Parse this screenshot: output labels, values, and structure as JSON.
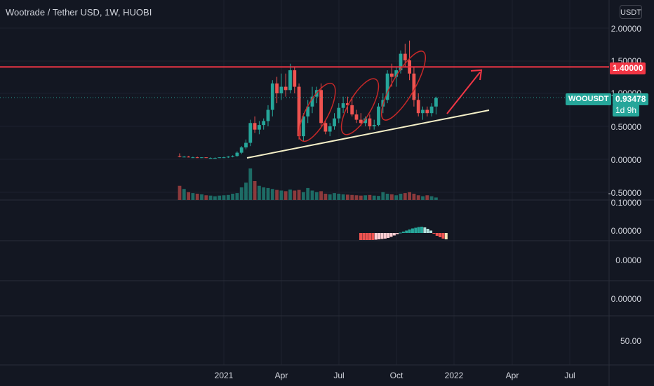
{
  "header": {
    "title": "Wootrade / Tether USD, 1W, HUOBI",
    "unit": "USDT"
  },
  "price_axis": [
    "2.00000",
    "1.50000",
    "1.00000",
    "0.50000",
    "0.00000",
    "-0.50000"
  ],
  "osc_axis": [
    "0.10000",
    "0.00000"
  ],
  "pane2_axis": [
    "0.0000"
  ],
  "pane3_axis": [
    "0.00000"
  ],
  "pane4_axis": [
    "50.00"
  ],
  "time_axis": [
    "2021",
    "Apr",
    "Jul",
    "Oct",
    "2022",
    "Apr",
    "Jul"
  ],
  "resistance": {
    "label": "1.40000",
    "color": "#f23645"
  },
  "ticker": {
    "symbol": "WOOUSDT",
    "price": "0.93478",
    "countdown": "1d 9h",
    "color": "#26a69a"
  },
  "colors": {
    "up": "#26a69a",
    "down": "#ef5350",
    "up_vol": "#1d6b65",
    "down_vol": "#8c3a3c",
    "trendline": "#f5f0c8",
    "annotation": "#f23645"
  },
  "chart_data": {
    "type": "candlestick",
    "interval": "1W",
    "ylim": [
      -0.6,
      2.1
    ],
    "x_start": "2020-10-19",
    "ohlc": [
      [
        0.05,
        0.09,
        0.03,
        0.04
      ],
      [
        0.04,
        0.05,
        0.03,
        0.04
      ],
      [
        0.04,
        0.05,
        0.03,
        0.03
      ],
      [
        0.03,
        0.04,
        0.02,
        0.03
      ],
      [
        0.03,
        0.04,
        0.02,
        0.02
      ],
      [
        0.02,
        0.03,
        0.02,
        0.03
      ],
      [
        0.03,
        0.03,
        0.02,
        0.02
      ],
      [
        0.02,
        0.03,
        0.01,
        0.02
      ],
      [
        0.02,
        0.03,
        0.01,
        0.02
      ],
      [
        0.02,
        0.03,
        0.02,
        0.03
      ],
      [
        0.03,
        0.04,
        0.02,
        0.03
      ],
      [
        0.03,
        0.05,
        0.02,
        0.04
      ],
      [
        0.04,
        0.06,
        0.03,
        0.05
      ],
      [
        0.05,
        0.12,
        0.04,
        0.1
      ],
      [
        0.1,
        0.2,
        0.08,
        0.18
      ],
      [
        0.18,
        0.3,
        0.15,
        0.25
      ],
      [
        0.25,
        0.6,
        0.2,
        0.55
      ],
      [
        0.55,
        0.65,
        0.4,
        0.45
      ],
      [
        0.45,
        0.58,
        0.38,
        0.52
      ],
      [
        0.52,
        0.62,
        0.45,
        0.58
      ],
      [
        0.58,
        0.82,
        0.5,
        0.75
      ],
      [
        0.75,
        1.2,
        0.65,
        1.15
      ],
      [
        1.15,
        1.25,
        0.85,
        1.0
      ],
      [
        1.0,
        1.3,
        0.9,
        1.1
      ],
      [
        1.1,
        1.3,
        0.95,
        1.05
      ],
      [
        1.05,
        1.45,
        1.0,
        1.35
      ],
      [
        1.35,
        1.4,
        1.0,
        1.1
      ],
      [
        1.1,
        1.15,
        0.3,
        0.35
      ],
      [
        0.35,
        0.7,
        0.28,
        0.65
      ],
      [
        0.65,
        0.9,
        0.55,
        0.8
      ],
      [
        0.8,
        1.1,
        0.7,
        0.95
      ],
      [
        0.95,
        1.1,
        0.85,
        1.05
      ],
      [
        1.05,
        1.15,
        0.5,
        0.55
      ],
      [
        0.55,
        0.6,
        0.38,
        0.42
      ],
      [
        0.42,
        0.55,
        0.35,
        0.5
      ],
      [
        0.5,
        0.7,
        0.45,
        0.62
      ],
      [
        0.62,
        0.85,
        0.55,
        0.78
      ],
      [
        0.78,
        0.95,
        0.7,
        0.85
      ],
      [
        0.85,
        0.95,
        0.7,
        0.82
      ],
      [
        0.82,
        0.92,
        0.65,
        0.68
      ],
      [
        0.68,
        0.75,
        0.55,
        0.6
      ],
      [
        0.6,
        0.7,
        0.5,
        0.55
      ],
      [
        0.55,
        0.65,
        0.5,
        0.62
      ],
      [
        0.62,
        0.68,
        0.45,
        0.5
      ],
      [
        0.5,
        0.6,
        0.45,
        0.52
      ],
      [
        0.52,
        0.85,
        0.5,
        0.8
      ],
      [
        0.8,
        1.0,
        0.7,
        0.9
      ],
      [
        0.9,
        1.35,
        0.85,
        1.3
      ],
      [
        1.3,
        1.45,
        1.1,
        1.25
      ],
      [
        1.25,
        1.4,
        1.1,
        1.35
      ],
      [
        1.35,
        1.65,
        1.3,
        1.6
      ],
      [
        1.6,
        1.75,
        1.4,
        1.5
      ],
      [
        1.5,
        1.8,
        1.2,
        1.3
      ],
      [
        1.3,
        1.4,
        0.8,
        0.9
      ],
      [
        0.9,
        1.0,
        0.65,
        0.7
      ],
      [
        0.7,
        0.8,
        0.6,
        0.75
      ],
      [
        0.75,
        0.8,
        0.65,
        0.7
      ],
      [
        0.7,
        0.85,
        0.65,
        0.8
      ],
      [
        0.8,
        0.95,
        0.68,
        0.93
      ]
    ],
    "volume": [
      0.45,
      0.35,
      0.25,
      0.22,
      0.2,
      0.18,
      0.15,
      0.14,
      0.12,
      0.14,
      0.15,
      0.16,
      0.2,
      0.22,
      0.4,
      0.55,
      1.0,
      0.6,
      0.45,
      0.4,
      0.38,
      0.35,
      0.32,
      0.3,
      0.28,
      0.33,
      0.3,
      0.32,
      0.25,
      0.38,
      0.3,
      0.25,
      0.28,
      0.2,
      0.18,
      0.22,
      0.2,
      0.18,
      0.17,
      0.16,
      0.15,
      0.14,
      0.15,
      0.16,
      0.14,
      0.13,
      0.25,
      0.2,
      0.18,
      0.15,
      0.2,
      0.22,
      0.25,
      0.2,
      0.15,
      0.12,
      0.15,
      0.12,
      0.08
    ],
    "histogram": [
      -1.0,
      -1.0,
      -1.0,
      -1.0,
      -1.0,
      -0.95,
      -0.9,
      -0.85,
      -0.8,
      -0.7,
      -0.55,
      -0.35,
      -0.15,
      0.05,
      0.2,
      0.35,
      0.5,
      0.65,
      0.75,
      0.85,
      0.9,
      0.8,
      0.6,
      0.35,
      -0.1,
      -0.4,
      -0.6,
      -0.8,
      -0.9
    ],
    "resistance_level": 1.4,
    "current_price": 0.93478
  }
}
